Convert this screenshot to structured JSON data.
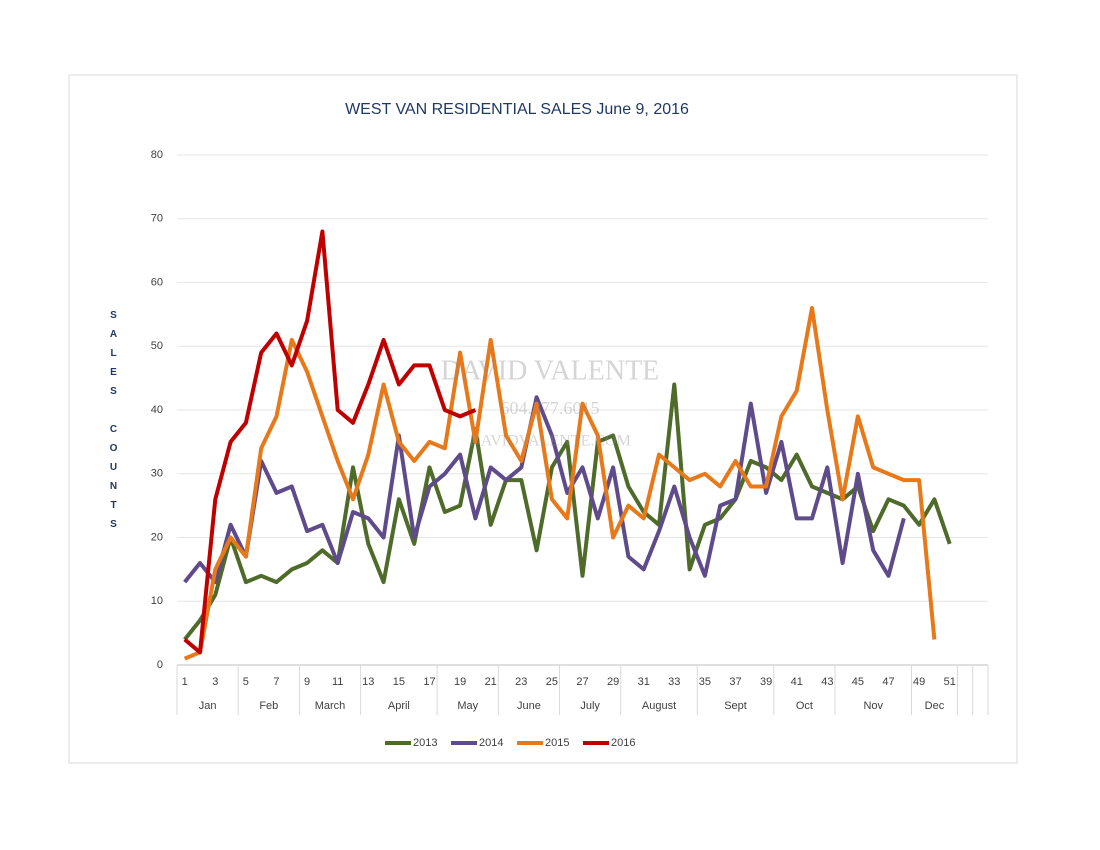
{
  "chart_data": {
    "type": "line",
    "title": "WEST VAN RESIDENTIAL SALES June 9, 2016",
    "y_label": "SALES COUNTS",
    "watermark": [
      "DAVID VALENTE",
      "604.377.6015",
      "DAVIDVALENTE.COM"
    ],
    "categories": [
      "1",
      null,
      "3",
      null,
      "5",
      null,
      "7",
      null,
      "9",
      null,
      "11",
      null,
      "13",
      null,
      "15",
      null,
      "17",
      null,
      "19",
      null,
      "21",
      null,
      "23",
      null,
      "25",
      null,
      "27",
      null,
      "29",
      null,
      "31",
      null,
      "33",
      null,
      "35",
      null,
      "37",
      null,
      "39",
      null,
      "41",
      null,
      "43",
      null,
      "45",
      null,
      "47",
      null,
      "49",
      null,
      "51",
      null,
      null
    ],
    "month_groups": [
      {
        "label": "Jan",
        "span": 4
      },
      {
        "label": "Feb",
        "span": 4
      },
      {
        "label": "March",
        "span": 4
      },
      {
        "label": "April",
        "span": 5
      },
      {
        "label": "May",
        "span": 4
      },
      {
        "label": "June",
        "span": 4
      },
      {
        "label": "July",
        "span": 4
      },
      {
        "label": "August",
        "span": 5
      },
      {
        "label": "Sept",
        "span": 5
      },
      {
        "label": "Oct",
        "span": 4
      },
      {
        "label": "Nov",
        "span": 5
      },
      {
        "label": "Dec",
        "span": 3
      }
    ],
    "ylim": [
      0,
      80
    ],
    "yticks": [
      0,
      10,
      20,
      30,
      40,
      50,
      60,
      70,
      80
    ],
    "grid": true,
    "legend": "bottom",
    "series": [
      {
        "name": "2013",
        "color": "#4e6b2a",
        "values": [
          4,
          7,
          11,
          20,
          13,
          14,
          13,
          15,
          16,
          18,
          16,
          31,
          19,
          13,
          26,
          19,
          31,
          24,
          25,
          37,
          22,
          29,
          29,
          18,
          31,
          35,
          14,
          35,
          36,
          28,
          24,
          22,
          44,
          15,
          22,
          23,
          26,
          32,
          31,
          29,
          33,
          28,
          27,
          26,
          28,
          21,
          26,
          25,
          22,
          26,
          19,
          null,
          null
        ]
      },
      {
        "name": "2014",
        "color": "#5f4b8b",
        "values": [
          13,
          16,
          13,
          22,
          17,
          32,
          27,
          28,
          21,
          22,
          16,
          24,
          23,
          20,
          36,
          20,
          28,
          30,
          33,
          23,
          31,
          29,
          31,
          42,
          36,
          27,
          31,
          23,
          31,
          17,
          15,
          21,
          28,
          20,
          14,
          25,
          26,
          41,
          27,
          35,
          23,
          23,
          31,
          16,
          30,
          18,
          14,
          23,
          null,
          null,
          null,
          null,
          null
        ]
      },
      {
        "name": "2015",
        "color": "#e8791a",
        "values": [
          1,
          2,
          15,
          20,
          17,
          34,
          39,
          51,
          46,
          39,
          32,
          26,
          33,
          44,
          35,
          32,
          35,
          34,
          49,
          35,
          51,
          36,
          32,
          41,
          26,
          23,
          41,
          36,
          20,
          25,
          23,
          33,
          31,
          29,
          30,
          28,
          32,
          28,
          28,
          39,
          43,
          56,
          40,
          26,
          39,
          31,
          30,
          29,
          29,
          4,
          null,
          null,
          null
        ]
      },
      {
        "name": "2016",
        "color": "#c00000",
        "values": [
          4,
          2,
          26,
          35,
          38,
          49,
          52,
          47,
          54,
          68,
          40,
          38,
          44,
          51,
          44,
          47,
          47,
          40,
          39,
          40,
          null,
          null,
          null,
          null,
          null,
          null,
          null,
          null,
          null,
          null,
          null,
          null,
          null,
          null,
          null,
          null,
          null,
          null,
          null,
          null,
          null,
          null,
          null,
          null,
          null,
          null,
          null,
          null,
          null,
          null,
          null,
          null,
          null
        ]
      }
    ]
  }
}
